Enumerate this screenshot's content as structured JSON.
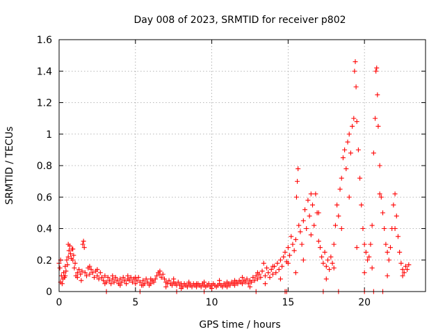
{
  "chart_data": {
    "type": "scatter",
    "title": "Day 008 of 2023, SRMTID for receiver p802",
    "xlabel": "GPS time / hours",
    "ylabel": "SRMTID / TECUs",
    "xlim": [
      0,
      24
    ],
    "ylim": [
      0,
      1.6
    ],
    "x_ticks": [
      0,
      5,
      10,
      15,
      20
    ],
    "x_tick_labels": [
      "0",
      "5",
      "10",
      "15",
      "20"
    ],
    "y_ticks": [
      0,
      0.2,
      0.4,
      0.6,
      0.8,
      1,
      1.2,
      1.4,
      1.6
    ],
    "y_tick_labels": [
      "0",
      "0.2",
      "0.4",
      "0.6",
      "0.8",
      "1",
      "1.2",
      "1.4",
      "1.6"
    ],
    "grid": true,
    "marker": "+",
    "series": [
      {
        "name": "SRMTID",
        "color": "#ff0000",
        "points": [
          [
            0.0,
            0.18
          ],
          [
            0.05,
            0.15
          ],
          [
            0.1,
            0.06
          ],
          [
            0.15,
            0.1
          ],
          [
            0.2,
            0.05
          ],
          [
            0.25,
            0.08
          ],
          [
            0.3,
            0.12
          ],
          [
            0.35,
            0.09
          ],
          [
            0.4,
            0.16
          ],
          [
            0.45,
            0.13
          ],
          [
            0.5,
            0.2
          ],
          [
            0.55,
            0.17
          ],
          [
            0.6,
            0.22
          ],
          [
            0.65,
            0.26
          ],
          [
            0.7,
            0.29
          ],
          [
            0.75,
            0.24
          ],
          [
            0.8,
            0.21
          ],
          [
            0.85,
            0.27
          ],
          [
            0.9,
            0.2
          ],
          [
            0.95,
            0.23
          ],
          [
            1.0,
            0.15
          ],
          [
            1.05,
            0.18
          ],
          [
            1.1,
            0.1
          ],
          [
            1.2,
            0.12
          ],
          [
            1.3,
            0.14
          ],
          [
            1.4,
            0.11
          ],
          [
            1.5,
            0.13
          ],
          [
            1.55,
            0.3
          ],
          [
            1.6,
            0.32
          ],
          [
            1.65,
            0.28
          ],
          [
            1.7,
            0.12
          ],
          [
            1.8,
            0.1
          ],
          [
            1.9,
            0.15
          ],
          [
            2.0,
            0.11
          ],
          [
            2.1,
            0.14
          ],
          [
            2.2,
            0.12
          ],
          [
            2.3,
            0.09
          ],
          [
            2.4,
            0.13
          ],
          [
            2.5,
            0.1
          ],
          [
            2.6,
            0.08
          ],
          [
            2.7,
            0.12
          ],
          [
            2.8,
            0.09
          ],
          [
            2.9,
            0.07
          ],
          [
            3.0,
            0.1
          ],
          [
            3.1,
            0.06
          ],
          [
            3.2,
            0.09
          ],
          [
            3.3,
            0.07
          ],
          [
            3.4,
            0.05
          ],
          [
            3.5,
            0.08
          ],
          [
            3.6,
            0.06
          ],
          [
            3.7,
            0.09
          ],
          [
            3.8,
            0.07
          ],
          [
            3.9,
            0.05
          ],
          [
            4.0,
            0.08
          ],
          [
            4.1,
            0.06
          ],
          [
            4.2,
            0.09
          ],
          [
            4.3,
            0.07
          ],
          [
            4.4,
            0.05
          ],
          [
            4.5,
            0.08
          ],
          [
            4.6,
            0.07
          ],
          [
            4.7,
            0.09
          ],
          [
            4.8,
            0.06
          ],
          [
            4.9,
            0.08
          ],
          [
            5.0,
            0.05
          ],
          [
            5.1,
            0.07
          ],
          [
            5.2,
            0.09
          ],
          [
            5.3,
            0.06
          ],
          [
            5.4,
            0.04
          ],
          [
            5.5,
            0.07
          ],
          [
            5.6,
            0.05
          ],
          [
            5.7,
            0.08
          ],
          [
            5.8,
            0.06
          ],
          [
            5.9,
            0.04
          ],
          [
            6.0,
            0.05
          ],
          [
            6.1,
            0.07
          ],
          [
            6.2,
            0.06
          ],
          [
            6.3,
            0.08
          ],
          [
            6.4,
            0.1
          ],
          [
            6.5,
            0.12
          ],
          [
            6.6,
            0.11
          ],
          [
            6.7,
            0.09
          ],
          [
            6.8,
            0.11
          ],
          [
            6.9,
            0.08
          ],
          [
            7.0,
            0.06
          ],
          [
            7.1,
            0.05
          ],
          [
            7.2,
            0.07
          ],
          [
            7.3,
            0.05
          ],
          [
            7.4,
            0.04
          ],
          [
            7.5,
            0.06
          ],
          [
            7.6,
            0.05
          ],
          [
            7.7,
            0.04
          ],
          [
            7.8,
            0.06
          ],
          [
            7.9,
            0.04
          ],
          [
            8.0,
            0.05
          ],
          [
            8.1,
            0.03
          ],
          [
            8.2,
            0.05
          ],
          [
            8.3,
            0.04
          ],
          [
            8.4,
            0.03
          ],
          [
            8.5,
            0.05
          ],
          [
            8.6,
            0.04
          ],
          [
            8.7,
            0.03
          ],
          [
            8.8,
            0.05
          ],
          [
            8.9,
            0.04
          ],
          [
            9.0,
            0.03
          ],
          [
            9.1,
            0.05
          ],
          [
            9.2,
            0.04
          ],
          [
            9.3,
            0.03
          ],
          [
            9.4,
            0.05
          ],
          [
            9.5,
            0.04
          ],
          [
            9.6,
            0.03
          ],
          [
            9.7,
            0.04
          ],
          [
            9.8,
            0.05
          ],
          [
            9.9,
            0.03
          ],
          [
            10.0,
            0.04
          ],
          [
            10.1,
            0.05
          ],
          [
            10.2,
            0.04
          ],
          [
            10.3,
            0.03
          ],
          [
            10.4,
            0.04
          ],
          [
            10.5,
            0.05
          ],
          [
            10.6,
            0.04
          ],
          [
            10.7,
            0.03
          ],
          [
            10.8,
            0.05
          ],
          [
            10.9,
            0.04
          ],
          [
            11.0,
            0.03
          ],
          [
            11.1,
            0.05
          ],
          [
            11.2,
            0.04
          ],
          [
            11.3,
            0.06
          ],
          [
            11.4,
            0.05
          ],
          [
            11.5,
            0.04
          ],
          [
            11.6,
            0.06
          ],
          [
            11.7,
            0.05
          ],
          [
            11.8,
            0.07
          ],
          [
            11.9,
            0.06
          ],
          [
            12.0,
            0.05
          ],
          [
            12.1,
            0.07
          ],
          [
            12.2,
            0.06
          ],
          [
            12.3,
            0.08
          ],
          [
            12.4,
            0.05
          ],
          [
            12.5,
            0.07
          ],
          [
            12.6,
            0.06
          ],
          [
            12.7,
            0.09
          ],
          [
            12.8,
            0.07
          ],
          [
            12.9,
            0.1
          ],
          [
            13.0,
            0.08
          ],
          [
            13.1,
            0.11
          ],
          [
            13.2,
            0.09
          ],
          [
            13.3,
            0.13
          ],
          [
            13.4,
            0.18
          ],
          [
            13.5,
            0.1
          ],
          [
            13.6,
            0.15
          ],
          [
            13.7,
            0.12
          ],
          [
            13.8,
            0.09
          ],
          [
            13.9,
            0.14
          ],
          [
            14.0,
            0.11
          ],
          [
            14.1,
            0.16
          ],
          [
            14.2,
            0.12
          ],
          [
            14.3,
            0.18
          ],
          [
            14.4,
            0.14
          ],
          [
            14.5,
            0.2
          ],
          [
            14.6,
            0.16
          ],
          [
            14.7,
            0.22
          ],
          [
            14.8,
            0.25
          ],
          [
            14.9,
            0.19
          ],
          [
            15.0,
            0.28
          ],
          [
            15.1,
            0.23
          ],
          [
            15.2,
            0.35
          ],
          [
            15.3,
            0.3
          ],
          [
            15.4,
            0.26
          ],
          [
            15.5,
            0.33
          ],
          [
            15.55,
            0.6
          ],
          [
            15.6,
            0.7
          ],
          [
            15.65,
            0.78
          ],
          [
            15.7,
            0.42
          ],
          [
            15.8,
            0.38
          ],
          [
            15.9,
            0.3
          ],
          [
            16.0,
            0.45
          ],
          [
            16.1,
            0.52
          ],
          [
            16.2,
            0.4
          ],
          [
            16.3,
            0.58
          ],
          [
            16.4,
            0.48
          ],
          [
            16.5,
            0.36
          ],
          [
            16.6,
            0.55
          ],
          [
            16.7,
            0.42
          ],
          [
            16.8,
            0.62
          ],
          [
            16.9,
            0.5
          ],
          [
            17.0,
            0.32
          ],
          [
            17.1,
            0.28
          ],
          [
            17.2,
            0.22
          ],
          [
            17.3,
            0.18
          ],
          [
            17.4,
            0.25
          ],
          [
            17.5,
            0.16
          ],
          [
            17.6,
            0.2
          ],
          [
            17.7,
            0.14
          ],
          [
            17.8,
            0.22
          ],
          [
            17.9,
            0.18
          ],
          [
            18.0,
            0.3
          ],
          [
            18.1,
            0.42
          ],
          [
            18.2,
            0.55
          ],
          [
            18.3,
            0.48
          ],
          [
            18.4,
            0.65
          ],
          [
            18.5,
            0.72
          ],
          [
            18.6,
            0.85
          ],
          [
            18.7,
            0.9
          ],
          [
            18.8,
            0.78
          ],
          [
            18.9,
            0.95
          ],
          [
            19.0,
            1.0
          ],
          [
            19.1,
            0.88
          ],
          [
            19.2,
            1.05
          ],
          [
            19.3,
            1.1
          ],
          [
            19.35,
            1.4
          ],
          [
            19.4,
            1.46
          ],
          [
            19.45,
            1.3
          ],
          [
            19.5,
            1.08
          ],
          [
            19.6,
            0.9
          ],
          [
            19.7,
            0.72
          ],
          [
            19.8,
            0.55
          ],
          [
            19.9,
            0.4
          ],
          [
            20.0,
            0.3
          ],
          [
            20.1,
            0.25
          ],
          [
            20.2,
            0.2
          ],
          [
            20.3,
            0.22
          ],
          [
            20.4,
            0.3
          ],
          [
            20.5,
            0.42
          ],
          [
            20.6,
            0.88
          ],
          [
            20.7,
            1.1
          ],
          [
            20.75,
            1.4
          ],
          [
            20.8,
            1.42
          ],
          [
            20.85,
            1.25
          ],
          [
            20.9,
            1.05
          ],
          [
            21.0,
            0.8
          ],
          [
            21.1,
            0.6
          ],
          [
            21.2,
            0.5
          ],
          [
            21.3,
            0.4
          ],
          [
            21.4,
            0.3
          ],
          [
            21.5,
            0.25
          ],
          [
            21.6,
            0.2
          ],
          [
            21.7,
            0.28
          ],
          [
            21.8,
            0.4
          ],
          [
            21.9,
            0.55
          ],
          [
            22.0,
            0.62
          ],
          [
            22.1,
            0.48
          ],
          [
            22.2,
            0.35
          ],
          [
            22.3,
            0.25
          ],
          [
            22.4,
            0.18
          ],
          [
            22.5,
            0.14
          ],
          [
            22.6,
            0.12
          ],
          [
            22.7,
            0.16
          ],
          [
            22.8,
            0.14
          ],
          [
            22.9,
            0.17
          ],
          [
            0.1,
            0.2
          ],
          [
            0.4,
            0.1
          ],
          [
            0.6,
            0.3
          ],
          [
            0.9,
            0.27
          ],
          [
            1.2,
            0.09
          ],
          [
            1.45,
            0.07
          ],
          [
            2.0,
            0.16
          ],
          [
            2.5,
            0.14
          ],
          [
            3.0,
            0.05
          ],
          [
            3.5,
            0.1
          ],
          [
            4.0,
            0.04
          ],
          [
            4.5,
            0.1
          ],
          [
            5.0,
            0.09
          ],
          [
            5.5,
            0.04
          ],
          [
            6.0,
            0.08
          ],
          [
            6.6,
            0.13
          ],
          [
            7.0,
            0.03
          ],
          [
            7.5,
            0.08
          ],
          [
            8.0,
            0.02
          ],
          [
            8.5,
            0.06
          ],
          [
            9.0,
            0.05
          ],
          [
            9.5,
            0.06
          ],
          [
            10.0,
            0.02
          ],
          [
            10.5,
            0.07
          ],
          [
            11.0,
            0.06
          ],
          [
            11.5,
            0.07
          ],
          [
            12.0,
            0.09
          ],
          [
            12.5,
            0.03
          ],
          [
            13.0,
            0.12
          ],
          [
            13.5,
            0.05
          ],
          [
            14.0,
            0.16
          ],
          [
            14.5,
            0.08
          ],
          [
            15.0,
            0.18
          ],
          [
            15.5,
            0.12
          ],
          [
            16.0,
            0.2
          ],
          [
            16.5,
            0.62
          ],
          [
            17.0,
            0.5
          ],
          [
            17.5,
            0.08
          ],
          [
            18.0,
            0.15
          ],
          [
            18.5,
            0.4
          ],
          [
            19.0,
            0.6
          ],
          [
            19.5,
            0.28
          ],
          [
            20.0,
            0.12
          ],
          [
            20.5,
            0.15
          ],
          [
            21.0,
            0.62
          ],
          [
            21.5,
            0.1
          ],
          [
            22.0,
            0.4
          ],
          [
            22.5,
            0.1
          ],
          [
            3.1,
            0.0
          ],
          [
            5.3,
            0.0
          ],
          [
            7.7,
            0.0
          ],
          [
            9.5,
            0.0
          ],
          [
            12.9,
            0.0
          ],
          [
            14.8,
            0.0
          ],
          [
            14.9,
            0.0
          ],
          [
            17.3,
            0.0
          ],
          [
            18.3,
            0.0
          ],
          [
            20.0,
            0.0
          ],
          [
            20.6,
            0.0
          ],
          [
            21.2,
            0.0
          ]
        ]
      }
    ]
  }
}
